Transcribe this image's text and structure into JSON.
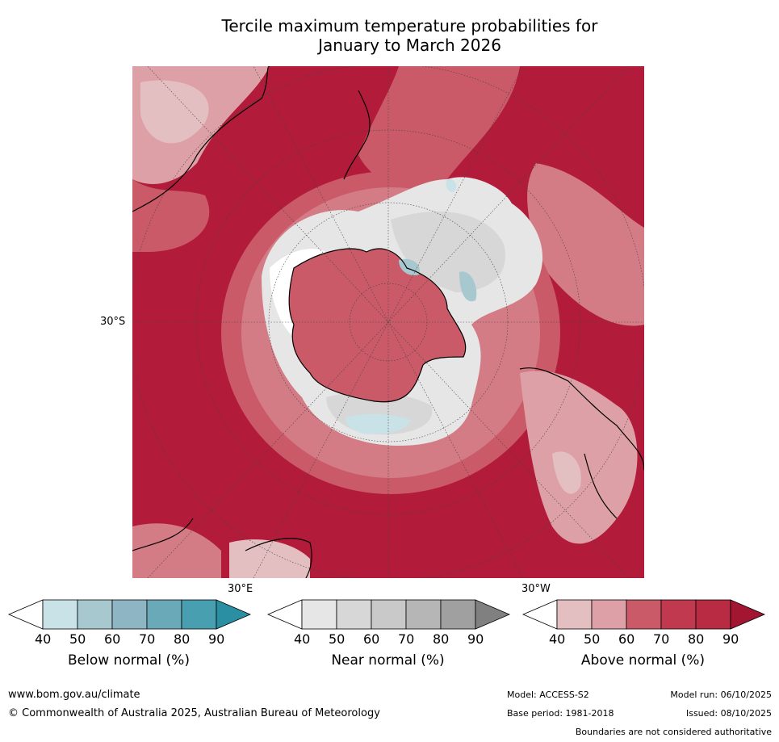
{
  "title_line1": "Tercile maximum temperature probabilities for",
  "title_line2": "January to March 2026",
  "map": {
    "lat_label": "30°S",
    "lon_label_left": "30°E",
    "lon_label_right": "30°W",
    "colors": {
      "above_90": "#b21c3a",
      "above_80": "#c0394f",
      "above_70": "#ca5a68",
      "above_60": "#d47c86",
      "above_50": "#dda0a6",
      "above_40": "#e4bfc2",
      "near_40": "#e6e6e6",
      "near_50": "#d7d7d7",
      "below_50": "#a7c8cf",
      "below_40": "#c9e2e8"
    }
  },
  "legends": [
    {
      "caption": "Below normal (%)",
      "ticks": [
        "40",
        "50",
        "60",
        "70",
        "80",
        "90"
      ],
      "colors": [
        "#ffffff",
        "#c9e2e8",
        "#a7c8cf",
        "#8eb5c3",
        "#6aaab8",
        "#479fb0",
        "#2a8fa3"
      ]
    },
    {
      "caption": "Near normal (%)",
      "ticks": [
        "40",
        "50",
        "60",
        "70",
        "80",
        "90"
      ],
      "colors": [
        "#ffffff",
        "#e6e6e6",
        "#d7d7d7",
        "#c9c9c9",
        "#b6b6b6",
        "#a0a0a0",
        "#808080"
      ]
    },
    {
      "caption": "Above normal (%)",
      "ticks": [
        "40",
        "50",
        "60",
        "70",
        "80",
        "90"
      ],
      "colors": [
        "#ffffff",
        "#e4bfc2",
        "#dda0a6",
        "#ca5a68",
        "#c0394f",
        "#b82b43",
        "#a31631"
      ]
    }
  ],
  "footer": {
    "website": "www.bom.gov.au/climate",
    "copyright": "© Commonwealth of Australia 2025, Australian Bureau of Meteorology",
    "model": "Model: ACCESS-S2",
    "model_run": "Model run: 06/10/2025",
    "base_period": "Base period: 1981-2018",
    "issued": "Issued: 08/10/2025",
    "disclaimer": "Boundaries are not considered authoritative"
  }
}
